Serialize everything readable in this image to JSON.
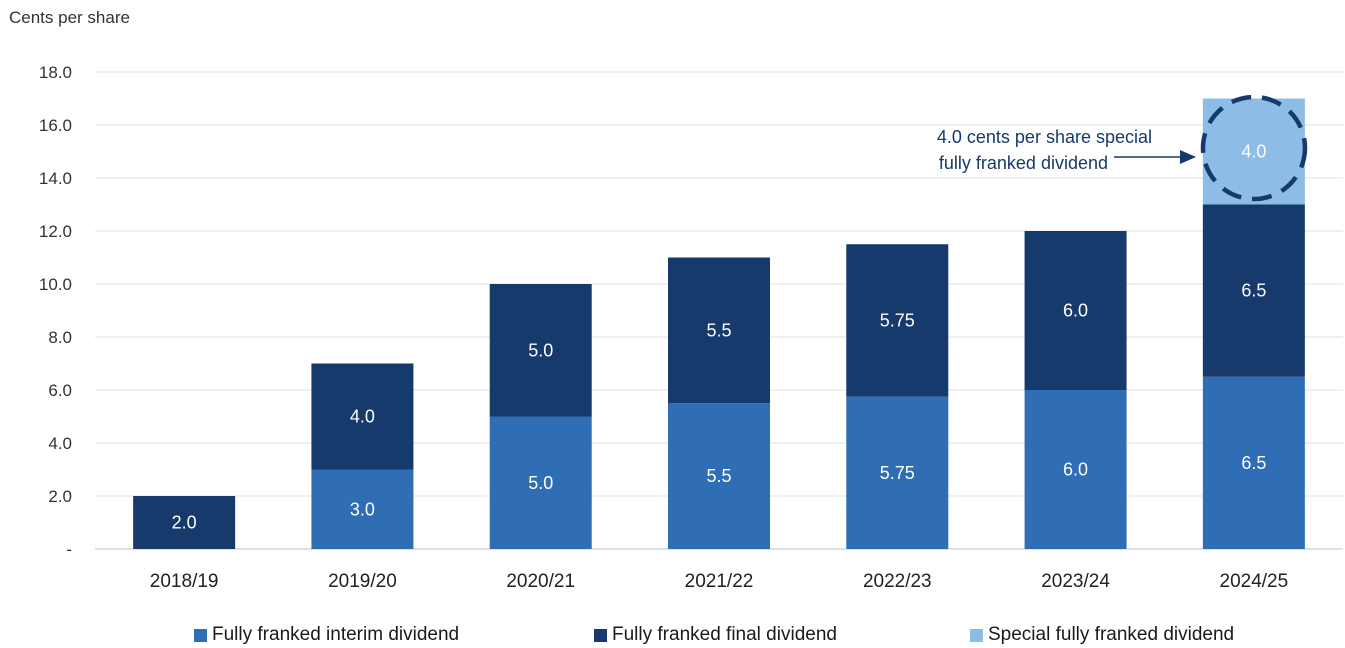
{
  "chart_data": {
    "type": "bar",
    "stacked": true,
    "ylabel": "Cents per share",
    "ylim": [
      0,
      18
    ],
    "yticks": [
      "-",
      "2.0",
      "4.0",
      "6.0",
      "8.0",
      "10.0",
      "12.0",
      "14.0",
      "16.0",
      "18.0"
    ],
    "grid": true,
    "legend_position": "bottom",
    "categories": [
      "2018/19",
      "2019/20",
      "2020/21",
      "2021/22",
      "2022/23",
      "2023/24",
      "2024/25"
    ],
    "series": [
      {
        "name": "Fully franked interim dividend",
        "color": "#2f6db5",
        "values": [
          0,
          3.0,
          5.0,
          5.5,
          5.75,
          6.0,
          6.5
        ],
        "labels": [
          "",
          "3.0",
          "5.0",
          "5.5",
          "5.75",
          "6.0",
          "6.5"
        ]
      },
      {
        "name": "Fully franked final dividend",
        "color": "#163a6b",
        "values": [
          2.0,
          4.0,
          5.0,
          5.5,
          5.75,
          6.0,
          6.5
        ],
        "labels": [
          "2.0",
          "4.0",
          "5.0",
          "5.5",
          "5.75",
          "6.0",
          "6.5"
        ]
      },
      {
        "name": "Special fully franked dividend",
        "color": "#8dbde6",
        "values": [
          0,
          0,
          0,
          0,
          0,
          0,
          4.0
        ],
        "labels": [
          "",
          "",
          "",
          "",
          "",
          "",
          "4.0"
        ]
      }
    ],
    "annotation": {
      "lines": [
        "4.0 cents per share special",
        "fully franked dividend"
      ],
      "target_category": "2024/25",
      "target_series": "Special fully franked dividend",
      "color": "#163a6b"
    }
  }
}
